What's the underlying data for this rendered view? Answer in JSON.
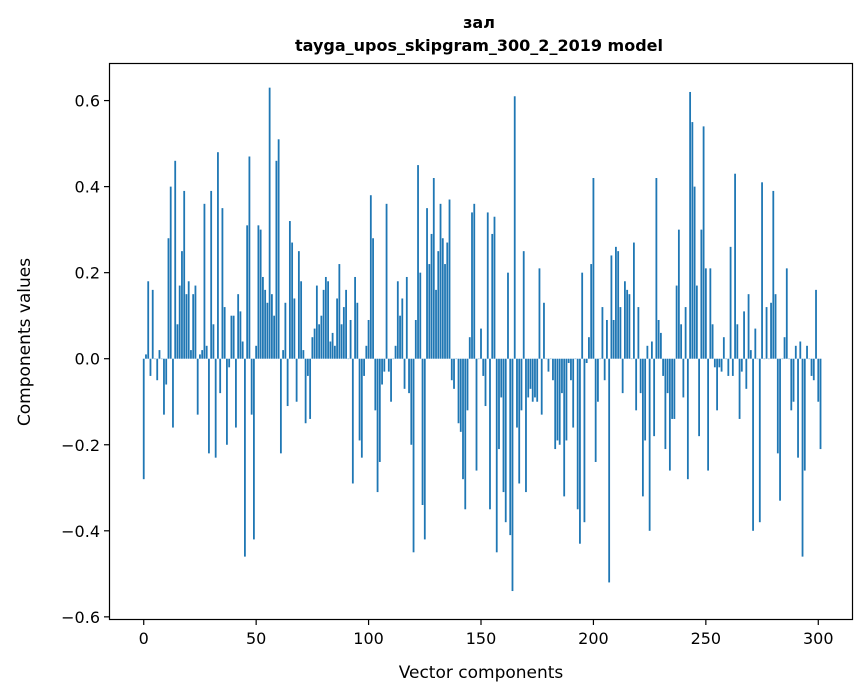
{
  "chart_data": {
    "type": "bar",
    "title": "зал",
    "subtitle": "tayga_upos_skipgram_300_2_2019 model",
    "xlabel": "Vector components",
    "ylabel": "Components values",
    "xlim": [
      -15,
      315
    ],
    "ylim": [
      -0.605,
      0.685
    ],
    "xticks": [
      0,
      50,
      100,
      150,
      200,
      250,
      300
    ],
    "xtick_labels": [
      "0",
      "50",
      "100",
      "150",
      "200",
      "250",
      "300"
    ],
    "yticks": [
      -0.6,
      -0.4,
      -0.2,
      0.0,
      0.2,
      0.4,
      0.6
    ],
    "ytick_labels": [
      "−0.6",
      "−0.4",
      "−0.2",
      "0.0",
      "0.2",
      "0.4",
      "0.6"
    ],
    "grid": false,
    "bar_color": "#1f77b4",
    "x_start": 0,
    "values": [
      -0.28,
      0.01,
      0.18,
      -0.04,
      0.16,
      0.0,
      -0.05,
      0.02,
      0.0,
      -0.13,
      -0.06,
      0.28,
      0.4,
      -0.16,
      0.46,
      0.08,
      0.17,
      0.25,
      0.39,
      0.15,
      0.18,
      0.02,
      0.15,
      0.17,
      -0.13,
      0.01,
      0.02,
      0.36,
      0.03,
      -0.22,
      0.39,
      0.08,
      -0.23,
      0.48,
      -0.08,
      0.35,
      0.12,
      -0.2,
      -0.02,
      0.1,
      0.1,
      -0.16,
      0.15,
      0.11,
      0.04,
      -0.46,
      0.31,
      0.47,
      -0.13,
      -0.42,
      0.03,
      0.31,
      0.3,
      0.19,
      0.16,
      0.13,
      0.63,
      0.15,
      0.1,
      0.46,
      0.51,
      -0.22,
      0.02,
      0.13,
      -0.11,
      0.32,
      0.27,
      0.14,
      -0.1,
      0.25,
      0.18,
      0.02,
      -0.15,
      -0.04,
      -0.14,
      0.05,
      0.07,
      0.17,
      0.08,
      0.1,
      0.16,
      0.19,
      0.18,
      0.04,
      0.06,
      0.03,
      0.14,
      0.22,
      0.08,
      0.12,
      0.16,
      0.0,
      0.09,
      -0.29,
      0.19,
      0.13,
      -0.19,
      -0.23,
      -0.04,
      0.03,
      0.09,
      0.38,
      0.28,
      -0.12,
      -0.31,
      -0.24,
      -0.06,
      -0.03,
      0.36,
      -0.03,
      -0.1,
      0.0,
      0.03,
      0.18,
      0.1,
      0.14,
      -0.07,
      0.19,
      -0.08,
      -0.2,
      -0.45,
      0.09,
      0.45,
      0.2,
      -0.34,
      -0.42,
      0.35,
      0.22,
      0.29,
      0.42,
      0.16,
      0.25,
      0.36,
      0.28,
      0.22,
      0.27,
      0.37,
      -0.05,
      -0.07,
      0.0,
      -0.15,
      -0.17,
      -0.28,
      -0.35,
      -0.12,
      0.05,
      0.34,
      0.36,
      -0.26,
      0.0,
      0.07,
      -0.04,
      -0.11,
      0.34,
      -0.35,
      0.29,
      0.33,
      -0.45,
      -0.21,
      -0.09,
      -0.31,
      -0.38,
      0.2,
      -0.41,
      -0.54,
      0.61,
      -0.16,
      -0.29,
      -0.12,
      0.25,
      -0.31,
      -0.09,
      -0.07,
      -0.1,
      -0.09,
      -0.1,
      0.21,
      -0.13,
      0.13,
      0.0,
      -0.03,
      0.0,
      -0.05,
      -0.21,
      -0.19,
      -0.2,
      -0.08,
      -0.32,
      -0.19,
      -0.01,
      -0.05,
      -0.16,
      0.0,
      -0.35,
      -0.43,
      0.2,
      -0.38,
      -0.01,
      0.05,
      0.22,
      0.42,
      -0.24,
      -0.1,
      0.0,
      0.12,
      -0.05,
      0.09,
      -0.52,
      0.24,
      0.09,
      0.26,
      0.25,
      0.12,
      -0.08,
      0.18,
      0.16,
      0.15,
      0.0,
      0.27,
      -0.12,
      0.12,
      -0.08,
      -0.32,
      -0.19,
      0.03,
      -0.4,
      0.04,
      -0.18,
      0.42,
      0.09,
      0.06,
      -0.04,
      -0.21,
      -0.08,
      -0.26,
      -0.14,
      -0.14,
      0.17,
      0.3,
      0.08,
      -0.09,
      0.12,
      -0.28,
      0.62,
      0.55,
      0.4,
      0.17,
      -0.18,
      0.3,
      0.54,
      0.21,
      -0.26,
      0.21,
      0.08,
      -0.02,
      -0.12,
      -0.02,
      -0.03,
      0.05,
      0.0,
      -0.04,
      0.26,
      -0.04,
      0.43,
      0.08,
      -0.14,
      -0.03,
      0.11,
      -0.07,
      0.15,
      0.02,
      -0.4,
      0.07,
      0.0,
      -0.38,
      0.41,
      0.0,
      0.12,
      0.0,
      0.13,
      0.39,
      0.15,
      -0.22,
      -0.33,
      0.0,
      0.05,
      0.21,
      0.0,
      -0.12,
      -0.1,
      0.03,
      -0.23,
      0.04,
      -0.46,
      -0.26,
      0.03,
      0.0,
      -0.04,
      -0.05,
      0.16,
      -0.1,
      -0.21
    ]
  }
}
